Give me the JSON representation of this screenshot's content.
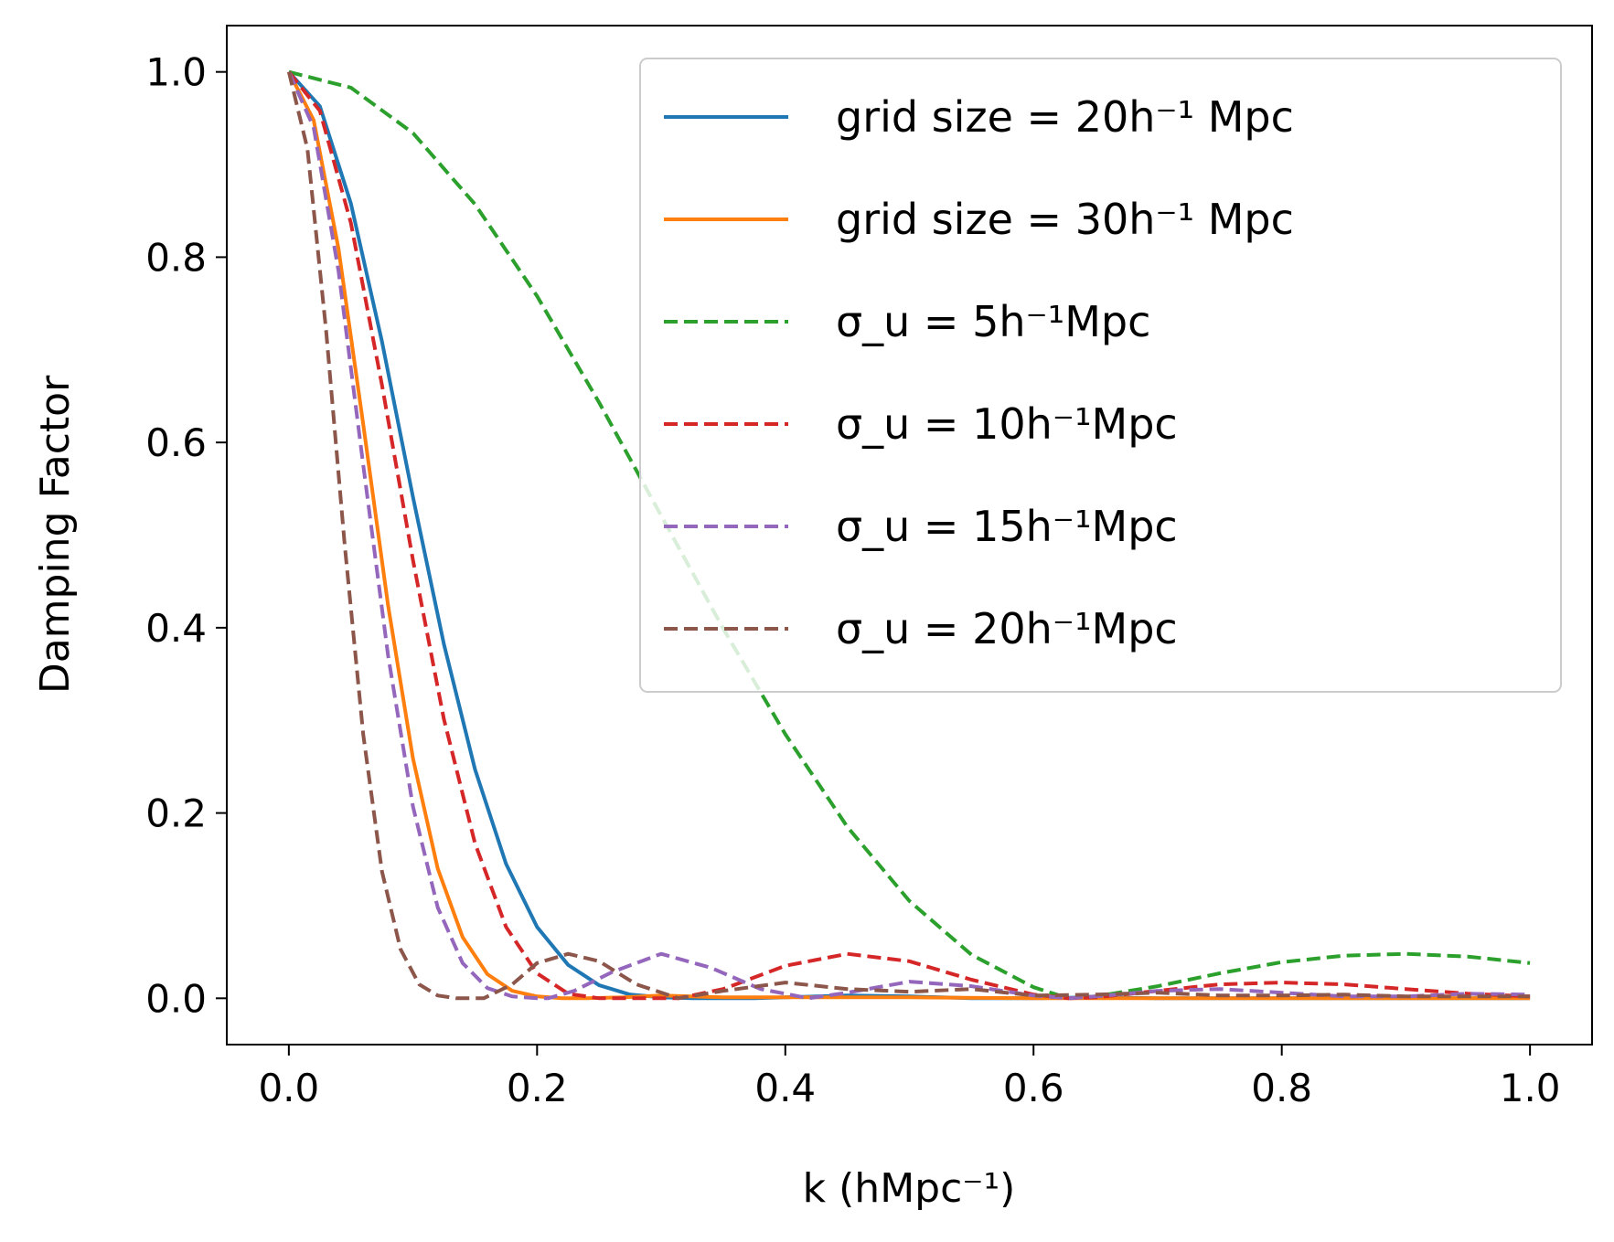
{
  "chart_data": {
    "type": "line",
    "xlabel": "k (hMpc⁻¹)",
    "ylabel": "Damping Factor",
    "xlim": [
      -0.05,
      1.05
    ],
    "ylim": [
      -0.05,
      1.05
    ],
    "xticks": [
      0.0,
      0.2,
      0.4,
      0.6,
      0.8,
      1.0
    ],
    "xtick_labels": [
      "0.0",
      "0.2",
      "0.4",
      "0.6",
      "0.8",
      "1.0"
    ],
    "yticks": [
      0.0,
      0.2,
      0.4,
      0.6,
      0.8,
      1.0
    ],
    "ytick_labels": [
      "0.0",
      "0.2",
      "0.4",
      "0.6",
      "0.8",
      "1.0"
    ],
    "grid": false,
    "legend_position": "upper-right",
    "series": [
      {
        "name": "grid size = 20h⁻¹ Mpc",
        "color": "#1f77b4",
        "style": "solid",
        "x": [
          0.0,
          0.025,
          0.05,
          0.075,
          0.1,
          0.125,
          0.15,
          0.175,
          0.2,
          0.225,
          0.25,
          0.275,
          0.3,
          0.325,
          0.35,
          0.375,
          0.4,
          0.45,
          0.5,
          0.55,
          0.6,
          0.65,
          0.7,
          0.8,
          0.9,
          1.0
        ],
        "y": [
          1.0,
          0.963,
          0.858,
          0.709,
          0.541,
          0.382,
          0.247,
          0.145,
          0.077,
          0.036,
          0.014,
          0.004,
          0.001,
          0.0,
          0.0,
          0.0,
          0.001,
          0.003,
          0.002,
          0.0,
          0.0,
          0.001,
          0.0,
          0.0,
          0.0,
          0.0
        ]
      },
      {
        "name": "grid size = 30h⁻¹ Mpc",
        "color": "#ff7f0e",
        "style": "solid",
        "x": [
          0.0,
          0.02,
          0.04,
          0.06,
          0.08,
          0.1,
          0.12,
          0.14,
          0.16,
          0.18,
          0.2,
          0.22,
          0.24,
          0.27,
          0.3,
          0.35,
          0.4,
          0.5,
          0.6,
          0.7,
          0.8,
          0.9,
          1.0
        ],
        "y": [
          1.0,
          0.948,
          0.809,
          0.619,
          0.424,
          0.259,
          0.14,
          0.066,
          0.026,
          0.008,
          0.002,
          0.0,
          0.0,
          0.001,
          0.003,
          0.001,
          0.001,
          0.001,
          0.0,
          0.0,
          0.0,
          0.0,
          0.0
        ]
      },
      {
        "name": "σ_u = 5h⁻¹Mpc",
        "color": "#2ca02c",
        "style": "dashed",
        "x": [
          0.0,
          0.05,
          0.1,
          0.15,
          0.2,
          0.25,
          0.3,
          0.35,
          0.4,
          0.45,
          0.5,
          0.55,
          0.6,
          0.628,
          0.65,
          0.7,
          0.75,
          0.8,
          0.85,
          0.9,
          0.95,
          1.0
        ],
        "y": [
          1.0,
          0.983,
          0.934,
          0.857,
          0.758,
          0.643,
          0.521,
          0.399,
          0.285,
          0.185,
          0.105,
          0.047,
          0.012,
          0.0,
          0.002,
          0.013,
          0.027,
          0.039,
          0.046,
          0.048,
          0.045,
          0.038
        ]
      },
      {
        "name": "σ_u = 10h⁻¹Mpc",
        "color": "#d62728",
        "style": "dashed",
        "x": [
          0.0,
          0.025,
          0.05,
          0.075,
          0.1,
          0.125,
          0.15,
          0.175,
          0.2,
          0.225,
          0.25,
          0.275,
          0.3,
          0.314,
          0.35,
          0.4,
          0.45,
          0.5,
          0.55,
          0.6,
          0.628,
          0.65,
          0.7,
          0.75,
          0.8,
          0.85,
          0.9,
          0.95,
          1.0
        ],
        "y": [
          1.0,
          0.958,
          0.837,
          0.662,
          0.473,
          0.301,
          0.167,
          0.077,
          0.027,
          0.005,
          0.0,
          0.0,
          0.0,
          0.0,
          0.01,
          0.035,
          0.048,
          0.04,
          0.02,
          0.004,
          0.0,
          0.001,
          0.008,
          0.015,
          0.017,
          0.015,
          0.01,
          0.005,
          0.002
        ]
      },
      {
        "name": "σ_u = 15h⁻¹Mpc",
        "color": "#9467bd",
        "style": "dashed",
        "x": [
          0.0,
          0.02,
          0.04,
          0.06,
          0.08,
          0.1,
          0.12,
          0.14,
          0.16,
          0.18,
          0.2,
          0.209,
          0.23,
          0.26,
          0.3,
          0.34,
          0.38,
          0.419,
          0.45,
          0.5,
          0.55,
          0.6,
          0.628,
          0.65,
          0.7,
          0.75,
          0.8,
          0.85,
          0.9,
          0.95,
          1.0
        ],
        "y": [
          1.0,
          0.94,
          0.785,
          0.575,
          0.37,
          0.207,
          0.098,
          0.038,
          0.011,
          0.002,
          0.0,
          0.0,
          0.008,
          0.028,
          0.048,
          0.033,
          0.01,
          0.0,
          0.006,
          0.018,
          0.013,
          0.003,
          0.0,
          0.002,
          0.008,
          0.01,
          0.006,
          0.002,
          0.002,
          0.005,
          0.004
        ]
      },
      {
        "name": "σ_u = 20h⁻¹Mpc",
        "color": "#8c564b",
        "style": "dashed",
        "x": [
          0.0,
          0.015,
          0.03,
          0.045,
          0.06,
          0.075,
          0.09,
          0.105,
          0.12,
          0.135,
          0.15,
          0.157,
          0.18,
          0.2,
          0.225,
          0.25,
          0.28,
          0.314,
          0.35,
          0.4,
          0.45,
          0.5,
          0.55,
          0.6,
          0.65,
          0.7,
          0.75,
          0.8,
          0.85,
          0.9,
          0.95,
          1.0
        ],
        "y": [
          1.0,
          0.917,
          0.721,
          0.49,
          0.284,
          0.137,
          0.053,
          0.015,
          0.003,
          0.0,
          0.0,
          0.0,
          0.015,
          0.038,
          0.048,
          0.04,
          0.015,
          0.0,
          0.008,
          0.017,
          0.01,
          0.007,
          0.01,
          0.003,
          0.004,
          0.006,
          0.003,
          0.003,
          0.004,
          0.002,
          0.002,
          0.002
        ]
      }
    ]
  }
}
